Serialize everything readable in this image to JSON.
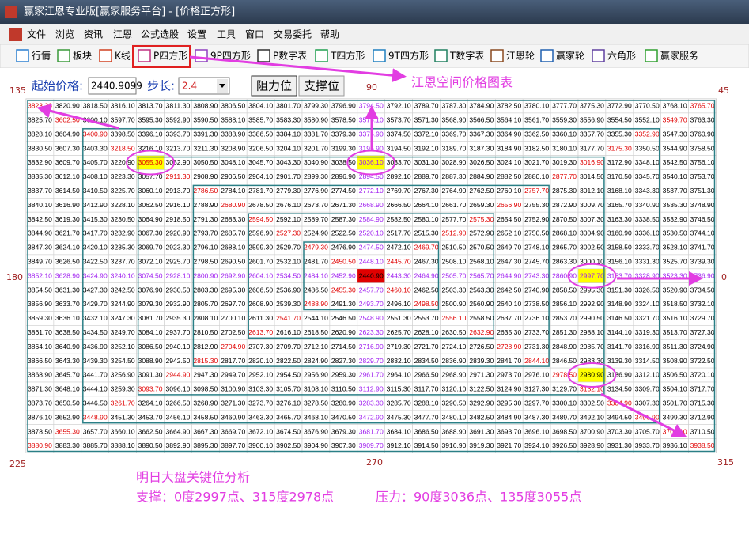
{
  "window_title": "赢家江恩专业版[赢家服务平台] - [价格正方形]",
  "menu": [
    "文件",
    "浏览",
    "资讯",
    "江恩",
    "公式选股",
    "设置",
    "工具",
    "窗口",
    "交易委托",
    "帮助"
  ],
  "toolbar": [
    "行情",
    "板块",
    "K线",
    "P四方形",
    "9P四方形",
    "P数字表",
    "T四方形",
    "9T四方形",
    "T数字表",
    "江恩轮",
    "赢家轮",
    "六角形",
    "赢家服务"
  ],
  "controls": {
    "start_label": "起始价格:",
    "start_value": "2440.9099",
    "step_label": "步长:",
    "step_value": "2.4",
    "buttons": [
      "阻力位",
      "支撑位"
    ]
  },
  "caption": "江恩空间价格图表",
  "angles": [
    "135",
    "90",
    "45",
    "180",
    "0",
    "225",
    "270",
    "315"
  ],
  "grid": {
    "rows": [
      [
        "3823.30",
        "3820.90",
        "3818.50",
        "3816.10",
        "3813.70",
        "3811.30",
        "3808.90",
        "3806.50",
        "3804.10",
        "3801.70",
        "3799.30",
        "3796.90",
        "3794.50",
        "3792.10",
        "3789.70",
        "3787.30",
        "3784.90",
        "3782.50",
        "3780.10",
        "3777.70",
        "3775.30",
        "3772.90",
        "3770.50",
        "3768.10",
        "3765.70"
      ],
      [
        "3825.70",
        "3602.50",
        "3600.10",
        "3597.70",
        "3595.30",
        "3592.90",
        "3590.50",
        "3588.10",
        "3585.70",
        "3583.30",
        "3580.90",
        "3578.50",
        "3576.10",
        "3573.70",
        "3571.30",
        "3568.90",
        "3566.50",
        "3564.10",
        "3561.70",
        "3559.30",
        "3556.90",
        "3554.50",
        "3552.10",
        "3549.70",
        "3763.30"
      ],
      [
        "3828.10",
        "3604.90",
        "3400.90",
        "3398.50",
        "3396.10",
        "3393.70",
        "3391.30",
        "3388.90",
        "3386.50",
        "3384.10",
        "3381.70",
        "3379.30",
        "3376.90",
        "3374.50",
        "3372.10",
        "3369.70",
        "3367.30",
        "3364.90",
        "3362.50",
        "3360.10",
        "3357.70",
        "3355.30",
        "3352.90",
        "3547.30",
        "3760.90"
      ],
      [
        "3830.50",
        "3607.30",
        "3403.30",
        "3218.50",
        "3216.10",
        "3213.70",
        "3211.30",
        "3208.90",
        "3206.50",
        "3204.10",
        "3201.70",
        "3199.30",
        "3196.90",
        "3194.50",
        "3192.10",
        "3189.70",
        "3187.30",
        "3184.90",
        "3182.50",
        "3180.10",
        "3177.70",
        "3175.30",
        "3350.50",
        "3544.90",
        "3758.50"
      ],
      [
        "3832.90",
        "3609.70",
        "3405.70",
        "3220.90",
        "3055.30",
        "3052.90",
        "3050.50",
        "3048.10",
        "3045.70",
        "3043.30",
        "3040.90",
        "3038.50",
        "3036.10",
        "3033.70",
        "3031.30",
        "3028.90",
        "3026.50",
        "3024.10",
        "3021.70",
        "3019.30",
        "3016.90",
        "3172.90",
        "3348.10",
        "3542.50",
        "3756.10"
      ],
      [
        "3835.30",
        "3612.10",
        "3408.10",
        "3223.30",
        "3057.70",
        "2911.30",
        "2908.90",
        "2906.50",
        "2904.10",
        "2901.70",
        "2899.30",
        "2896.90",
        "2894.50",
        "2892.10",
        "2889.70",
        "2887.30",
        "2884.90",
        "2882.50",
        "2880.10",
        "2877.70",
        "3014.50",
        "3170.50",
        "3345.70",
        "3540.10",
        "3753.70"
      ],
      [
        "3837.70",
        "3614.50",
        "3410.50",
        "3225.70",
        "3060.10",
        "2913.70",
        "2786.50",
        "2784.10",
        "2781.70",
        "2779.30",
        "2776.90",
        "2774.50",
        "2772.10",
        "2769.70",
        "2767.30",
        "2764.90",
        "2762.50",
        "2760.10",
        "2757.70",
        "2875.30",
        "3012.10",
        "3168.10",
        "3343.30",
        "3537.70",
        "3751.30"
      ],
      [
        "3840.10",
        "3616.90",
        "3412.90",
        "3228.10",
        "3062.50",
        "2916.10",
        "2788.90",
        "2680.90",
        "2678.50",
        "2676.10",
        "2673.70",
        "2671.30",
        "2668.90",
        "2666.50",
        "2664.10",
        "2661.70",
        "2659.30",
        "2656.90",
        "2755.30",
        "2872.90",
        "3009.70",
        "3165.70",
        "3340.90",
        "3535.30",
        "3748.90"
      ],
      [
        "3842.50",
        "3619.30",
        "3415.30",
        "3230.50",
        "3064.90",
        "2918.50",
        "2791.30",
        "2683.30",
        "2594.50",
        "2592.10",
        "2589.70",
        "2587.30",
        "2584.90",
        "2582.50",
        "2580.10",
        "2577.70",
        "2575.30",
        "2654.50",
        "2752.90",
        "2870.50",
        "3007.30",
        "3163.30",
        "3338.50",
        "3532.90",
        "3746.50"
      ],
      [
        "3844.90",
        "3621.70",
        "3417.70",
        "3232.90",
        "3067.30",
        "2920.90",
        "2793.70",
        "2685.70",
        "2596.90",
        "2527.30",
        "2524.90",
        "2522.50",
        "2520.10",
        "2517.70",
        "2515.30",
        "2512.90",
        "2572.90",
        "2652.10",
        "2750.50",
        "2868.10",
        "3004.90",
        "3160.90",
        "3336.10",
        "3530.50",
        "3744.10"
      ],
      [
        "3847.30",
        "3624.10",
        "3420.10",
        "3235.30",
        "3069.70",
        "2923.30",
        "2796.10",
        "2688.10",
        "2599.30",
        "2529.70",
        "2479.30",
        "2476.90",
        "2474.50",
        "2472.10",
        "2469.70",
        "2510.50",
        "2570.50",
        "2649.70",
        "2748.10",
        "2865.70",
        "3002.50",
        "3158.50",
        "3333.70",
        "3528.10",
        "3741.70"
      ],
      [
        "3849.70",
        "3626.50",
        "3422.50",
        "3237.70",
        "3072.10",
        "2925.70",
        "2798.50",
        "2690.50",
        "2601.70",
        "2532.10",
        "2481.70",
        "2450.50",
        "2448.10",
        "2445.70",
        "2467.30",
        "2508.10",
        "2568.10",
        "2647.30",
        "2745.70",
        "2863.30",
        "3000.10",
        "3156.10",
        "3331.30",
        "3525.70",
        "3739.30"
      ],
      [
        "3852.10",
        "3628.90",
        "3424.90",
        "3240.10",
        "3074.50",
        "2928.10",
        "2800.90",
        "2692.90",
        "2604.10",
        "2534.50",
        "2484.10",
        "2452.90",
        "2440.90",
        "2443.30",
        "2464.90",
        "2505.70",
        "2565.70",
        "2644.90",
        "2743.30",
        "2860.90",
        "2997.70",
        "3153.70",
        "3328.90",
        "3523.30",
        "3736.90"
      ],
      [
        "3854.50",
        "3631.30",
        "3427.30",
        "3242.50",
        "3076.90",
        "2930.50",
        "2803.30",
        "2695.30",
        "2606.50",
        "2536.90",
        "2486.50",
        "2455.30",
        "2457.70",
        "2460.10",
        "2462.50",
        "2503.30",
        "2563.30",
        "2642.50",
        "2740.90",
        "2858.50",
        "2995.30",
        "3151.30",
        "3326.50",
        "3520.90",
        "3734.50"
      ],
      [
        "3856.90",
        "3633.70",
        "3429.70",
        "3244.90",
        "3079.30",
        "2932.90",
        "2805.70",
        "2697.70",
        "2608.90",
        "2539.30",
        "2488.90",
        "2491.30",
        "2493.70",
        "2496.10",
        "2498.50",
        "2500.90",
        "2560.90",
        "2640.10",
        "2738.50",
        "2856.10",
        "2992.90",
        "3148.90",
        "3324.10",
        "3518.50",
        "3732.10"
      ],
      [
        "3859.30",
        "3636.10",
        "3432.10",
        "3247.30",
        "3081.70",
        "2935.30",
        "2808.10",
        "2700.10",
        "2611.30",
        "2541.70",
        "2544.10",
        "2546.50",
        "2548.90",
        "2551.30",
        "2553.70",
        "2556.10",
        "2558.50",
        "2637.70",
        "2736.10",
        "2853.70",
        "2990.50",
        "3146.50",
        "3321.70",
        "3516.10",
        "3729.70"
      ],
      [
        "3861.70",
        "3638.50",
        "3434.50",
        "3249.70",
        "3084.10",
        "2937.70",
        "2810.50",
        "2702.50",
        "2613.70",
        "2616.10",
        "2618.50",
        "2620.90",
        "2623.30",
        "2625.70",
        "2628.10",
        "2630.50",
        "2632.90",
        "2635.30",
        "2733.70",
        "2851.30",
        "2988.10",
        "3144.10",
        "3319.30",
        "3513.70",
        "3727.30"
      ],
      [
        "3864.10",
        "3640.90",
        "3436.90",
        "3252.10",
        "3086.50",
        "2940.10",
        "2812.90",
        "2704.90",
        "2707.30",
        "2709.70",
        "2712.10",
        "2714.50",
        "2716.90",
        "2719.30",
        "2721.70",
        "2724.10",
        "2726.50",
        "2728.90",
        "2731.30",
        "2848.90",
        "2985.70",
        "3141.70",
        "3316.90",
        "3511.30",
        "3724.90"
      ],
      [
        "3866.50",
        "3643.30",
        "3439.30",
        "3254.50",
        "3088.90",
        "2942.50",
        "2815.30",
        "2817.70",
        "2820.10",
        "2822.50",
        "2824.90",
        "2827.30",
        "2829.70",
        "2832.10",
        "2834.50",
        "2836.90",
        "2839.30",
        "2841.70",
        "2844.10",
        "2846.50",
        "2983.30",
        "3139.30",
        "3314.50",
        "3508.90",
        "3722.50"
      ],
      [
        "3868.90",
        "3645.70",
        "3441.70",
        "3256.90",
        "3091.30",
        "2944.90",
        "2947.30",
        "2949.70",
        "2952.10",
        "2954.50",
        "2956.90",
        "2959.30",
        "2961.70",
        "2964.10",
        "2966.50",
        "2968.90",
        "2971.30",
        "2973.70",
        "2976.10",
        "2978.50",
        "2980.90",
        "3136.90",
        "3312.10",
        "3506.50",
        "3720.10"
      ],
      [
        "3871.30",
        "3648.10",
        "3444.10",
        "3259.30",
        "3093.70",
        "3096.10",
        "3098.50",
        "3100.90",
        "3103.30",
        "3105.70",
        "3108.10",
        "3110.50",
        "3112.90",
        "3115.30",
        "3117.70",
        "3120.10",
        "3122.50",
        "3124.90",
        "3127.30",
        "3129.70",
        "3132.10",
        "3134.50",
        "3309.70",
        "3504.10",
        "3717.70"
      ],
      [
        "3873.70",
        "3650.50",
        "3446.50",
        "3261.70",
        "3264.10",
        "3266.50",
        "3268.90",
        "3271.30",
        "3273.70",
        "3276.10",
        "3278.50",
        "3280.90",
        "3283.30",
        "3285.70",
        "3288.10",
        "3290.50",
        "3292.90",
        "3295.30",
        "3297.70",
        "3300.10",
        "3302.50",
        "3304.90",
        "3307.30",
        "3501.70",
        "3715.30"
      ],
      [
        "3876.10",
        "3652.90",
        "3448.90",
        "3451.30",
        "3453.70",
        "3456.10",
        "3458.50",
        "3460.90",
        "3463.30",
        "3465.70",
        "3468.10",
        "3470.50",
        "3472.90",
        "3475.30",
        "3477.70",
        "3480.10",
        "3482.50",
        "3484.90",
        "3487.30",
        "3489.70",
        "3492.10",
        "3494.50",
        "3496.90",
        "3499.30",
        "3712.90"
      ],
      [
        "3878.50",
        "3655.30",
        "3657.70",
        "3660.10",
        "3662.50",
        "3664.90",
        "3667.30",
        "3669.70",
        "3672.10",
        "3674.50",
        "3676.90",
        "3679.30",
        "3681.70",
        "3684.10",
        "3686.50",
        "3688.90",
        "3691.30",
        "3693.70",
        "3696.10",
        "3698.50",
        "3700.90",
        "3703.30",
        "3705.70",
        "3708.10",
        "3710.50"
      ],
      [
        "3880.90",
        "3883.30",
        "3885.70",
        "3888.10",
        "3890.50",
        "3892.90",
        "3895.30",
        "3897.70",
        "3900.10",
        "3902.50",
        "3904.90",
        "3907.30",
        "3909.70",
        "3912.10",
        "3914.50",
        "3916.90",
        "3919.30",
        "3921.70",
        "3924.10",
        "3926.50",
        "3928.90",
        "3931.30",
        "3933.70",
        "3936.10",
        "3938.50"
      ]
    ]
  },
  "analysis": {
    "title": "明日大盘关键位分析",
    "support": "支撑：0度2997点、315度2978点",
    "resistance": "压力：90度3036点、135度3055点"
  }
}
